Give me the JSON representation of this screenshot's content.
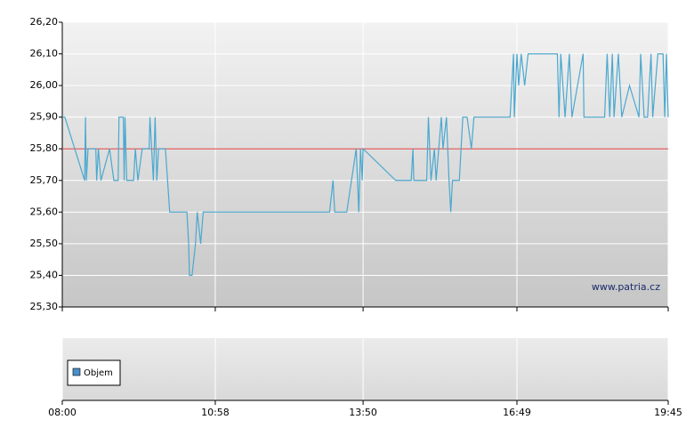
{
  "chart_data": {
    "type": "line",
    "color": "#4aa8cf",
    "x": [
      "08:00",
      "08:03",
      "08:26",
      "08:27",
      "08:28",
      "08:30",
      "08:39",
      "08:40",
      "08:42",
      "08:45",
      "08:55",
      "09:00",
      "09:05",
      "09:06",
      "09:11",
      "09:12",
      "09:13",
      "09:15",
      "09:23",
      "09:25",
      "09:28",
      "09:33",
      "09:41",
      "09:42",
      "09:46",
      "09:48",
      "09:50",
      "09:52",
      "10:00",
      "10:05",
      "10:25",
      "10:27",
      "10:28",
      "10:31",
      "10:35",
      "10:37",
      "10:41",
      "10:44",
      "11:17",
      "13:11",
      "13:15",
      "13:17",
      "13:31",
      "13:42",
      "13:45",
      "13:47",
      "13:49",
      "13:50",
      "14:28",
      "14:46",
      "14:48",
      "14:49",
      "15:04",
      "15:06",
      "15:09",
      "15:13",
      "15:15",
      "15:21",
      "15:23",
      "15:27",
      "15:30",
      "15:32",
      "15:34",
      "15:42",
      "15:46",
      "15:51",
      "15:56",
      "15:59",
      "16:41",
      "16:43",
      "16:45",
      "16:46",
      "16:49",
      "16:51",
      "16:54",
      "16:58",
      "17:02",
      "17:36",
      "17:38",
      "17:40",
      "17:45",
      "17:50",
      "17:53",
      "18:06",
      "18:07",
      "18:31",
      "18:34",
      "18:37",
      "18:40",
      "18:42",
      "18:47",
      "18:51",
      "19:00",
      "19:11",
      "19:13",
      "19:17",
      "19:21",
      "19:25",
      "19:27",
      "19:33",
      "19:39",
      "19:41",
      "19:43",
      "19:45"
    ],
    "values": [
      25.9,
      25.9,
      25.7,
      25.9,
      25.7,
      25.8,
      25.8,
      25.7,
      25.8,
      25.7,
      25.8,
      25.7,
      25.7,
      25.9,
      25.9,
      25.7,
      25.9,
      25.7,
      25.7,
      25.8,
      25.7,
      25.8,
      25.8,
      25.9,
      25.7,
      25.9,
      25.7,
      25.8,
      25.8,
      25.6,
      25.6,
      25.5,
      25.4,
      25.4,
      25.5,
      25.6,
      25.5,
      25.6,
      25.6,
      25.6,
      25.7,
      25.6,
      25.6,
      25.8,
      25.6,
      25.8,
      25.7,
      25.8,
      25.7,
      25.7,
      25.8,
      25.7,
      25.7,
      25.9,
      25.7,
      25.8,
      25.7,
      25.9,
      25.8,
      25.9,
      25.7,
      25.6,
      25.7,
      25.7,
      25.9,
      25.9,
      25.8,
      25.9,
      25.9,
      26.0,
      26.1,
      25.9,
      26.1,
      26.0,
      26.1,
      26.0,
      26.1,
      26.1,
      25.9,
      26.1,
      25.9,
      26.1,
      25.9,
      26.1,
      25.9,
      25.9,
      26.1,
      25.9,
      26.1,
      25.9,
      26.1,
      25.9,
      26.0,
      25.9,
      26.1,
      25.9,
      25.9,
      26.1,
      25.9,
      26.1,
      26.1,
      25.9,
      26.1,
      25.9
    ],
    "xlim": [
      "08:00",
      "19:45"
    ],
    "xticks": [
      "08:00",
      "10:58",
      "13:50",
      "16:49",
      "19:45"
    ],
    "ylim": [
      25.3,
      26.2
    ],
    "yticks": [
      {
        "value": 25.3,
        "label": "25,30"
      },
      {
        "value": 25.4,
        "label": "25,40"
      },
      {
        "value": 25.5,
        "label": "25,50"
      },
      {
        "value": 25.6,
        "label": "25,60"
      },
      {
        "value": 25.7,
        "label": "25,70"
      },
      {
        "value": 25.8,
        "label": "25,80"
      },
      {
        "value": 25.9,
        "label": "25,90"
      },
      {
        "value": 26.0,
        "label": "26,00"
      },
      {
        "value": 26.1,
        "label": "26,10"
      },
      {
        "value": 26.2,
        "label": "26,20"
      }
    ],
    "grid": true,
    "reference_line": {
      "value": 25.8,
      "color": "#e03a3a"
    },
    "watermark": "www.patria.cz",
    "volume_series": [
      {
        "name": "Objem",
        "color": "#4a90c8",
        "values": []
      }
    ]
  }
}
